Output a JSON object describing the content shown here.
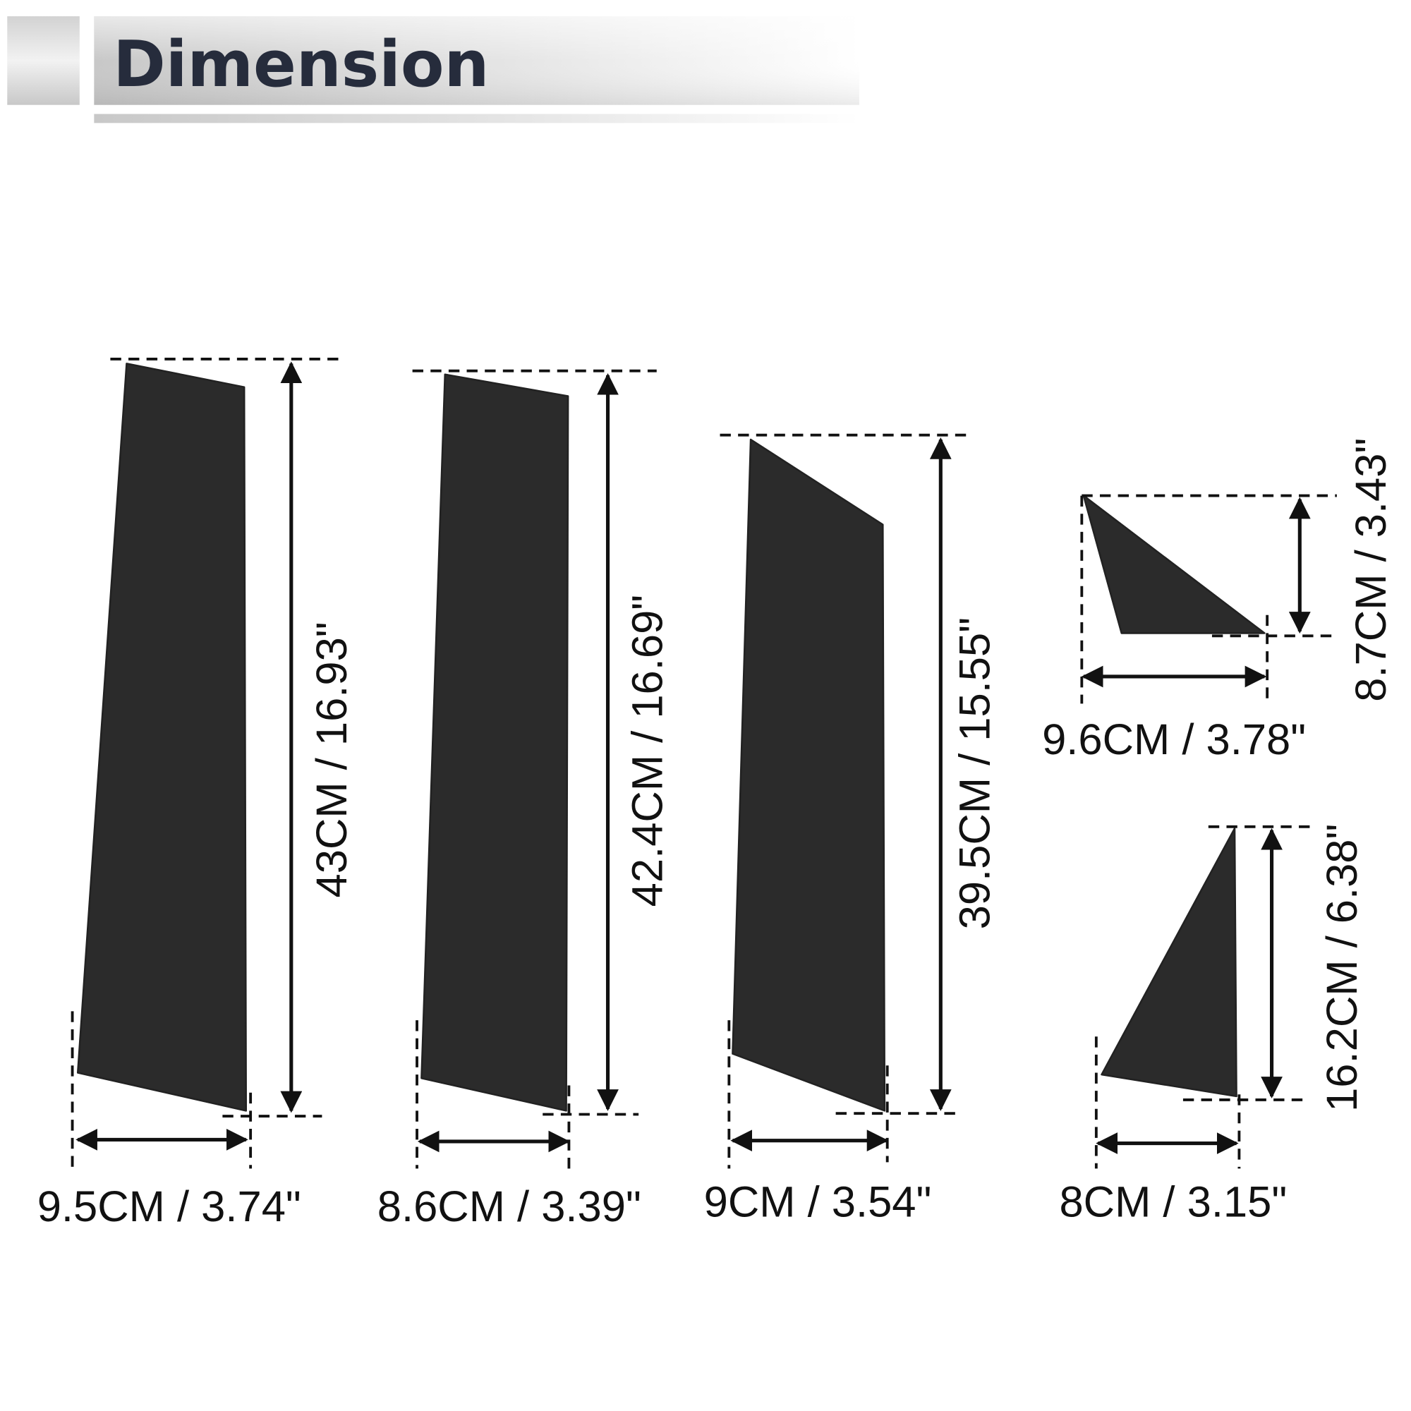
{
  "header": {
    "title": "Dimension"
  },
  "pieces": [
    {
      "width": "9.5CM / 3.74\"",
      "height": "43CM / 16.93\""
    },
    {
      "width": "8.6CM / 3.39\"",
      "height": "42.4CM / 16.69\""
    },
    {
      "width": "9CM / 3.54\"",
      "height": "39.5CM / 15.55\""
    },
    {
      "width": "9.6CM / 3.78\"",
      "height": "8.7CM / 3.43\""
    },
    {
      "width": "8CM / 3.15\"",
      "height": "16.2CM / 6.38\""
    }
  ]
}
